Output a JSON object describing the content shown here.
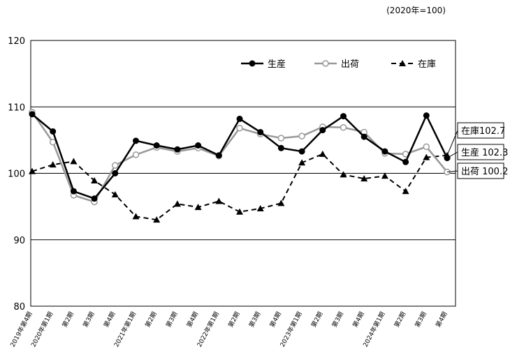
{
  "chart_data": {
    "type": "line",
    "unit_note": "(2020年=100)",
    "ylim": [
      80,
      120
    ],
    "y_ticks": [
      80,
      90,
      100,
      110,
      120
    ],
    "categories": [
      "2019年第4期",
      "2020年第1期",
      "第2期",
      "第3期",
      "第4期",
      "2021年第1期",
      "第2期",
      "第3期",
      "第4期",
      "2022年第1期",
      "第2期",
      "第3期",
      "第4期",
      "2023年第1期",
      "第2期",
      "第3期",
      "第4期",
      "2024年第1期",
      "第2期",
      "第3期",
      "第4期"
    ],
    "series": [
      {
        "name": "生産",
        "color": "#000000",
        "marker": "filled-circle",
        "dash": "solid",
        "values": [
          108.9,
          106.3,
          97.3,
          96.2,
          100.0,
          104.9,
          104.2,
          103.6,
          104.2,
          102.7,
          108.2,
          106.2,
          103.8,
          103.3,
          106.5,
          108.6,
          105.5,
          103.3,
          101.7,
          108.7,
          102.3
        ]
      },
      {
        "name": "出荷",
        "color": "#999999",
        "marker": "open-circle",
        "dash": "solid",
        "values": [
          109.2,
          104.7,
          96.7,
          95.7,
          101.2,
          102.8,
          103.9,
          103.3,
          103.8,
          102.6,
          106.8,
          105.9,
          105.3,
          105.6,
          107.0,
          106.9,
          106.2,
          103.0,
          102.9,
          104.0,
          100.2
        ]
      },
      {
        "name": "在庫",
        "color": "#000000",
        "marker": "filled-triangle",
        "dash": "dashed",
        "values": [
          100.3,
          101.3,
          101.8,
          98.9,
          96.8,
          93.5,
          93.0,
          95.4,
          94.9,
          95.8,
          94.2,
          94.7,
          95.5,
          101.6,
          102.9,
          99.8,
          99.2,
          99.6,
          97.3,
          102.4,
          102.7
        ]
      }
    ],
    "end_labels": [
      "在庫102.7",
      "生産 102.3",
      "出荷 100.2"
    ],
    "legend_position": "top-right",
    "grid": "horizontal"
  }
}
